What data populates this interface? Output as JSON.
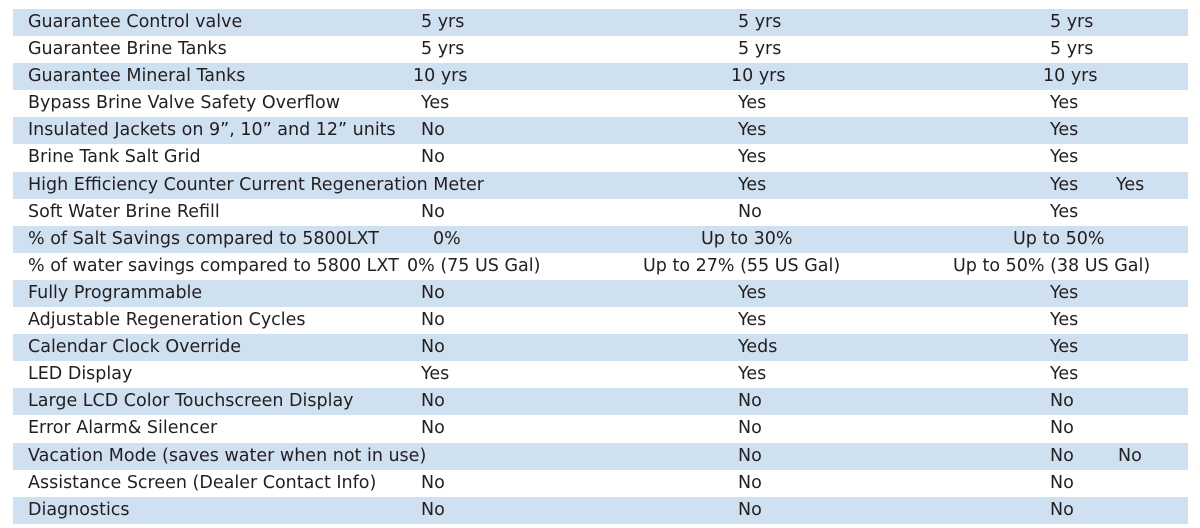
{
  "rows": [
    {
      "label": "Guarantee Control valve",
      "a": "5 yrs",
      "b": "5 yrs",
      "c": "5 yrs",
      "extra": ""
    },
    {
      "label": "Guarantee Brine Tanks",
      "a": "5 yrs",
      "b": "5 yrs",
      "c": "5 yrs",
      "extra": ""
    },
    {
      "label": "Guarantee Mineral Tanks",
      "a": "10 yrs",
      "b": "10 yrs",
      "c": "10 yrs",
      "extra": ""
    },
    {
      "label": "Bypass Brine Valve Safety Overflow",
      "a": "Yes",
      "b": "Yes",
      "c": "Yes",
      "extra": ""
    },
    {
      "label": "Insulated Jackets on 9”, 10” and 12” units",
      "a": "No",
      "b": "Yes",
      "c": "Yes",
      "extra": ""
    },
    {
      "label": "Brine Tank Salt Grid",
      "a": "No",
      "b": "Yes",
      "c": "Yes",
      "extra": ""
    },
    {
      "label": "High Efficiency Counter Current Regeneration Meter",
      "a": "",
      "b": "Yes",
      "c": "Yes",
      "extra": "Yes"
    },
    {
      "label": "Soft Water Brine Refill",
      "a": "No",
      "b": "No",
      "c": "Yes",
      "extra": ""
    },
    {
      "label": "% of Salt Savings compared to 5800LXT",
      "a": "0%",
      "b": "Up to 30%",
      "c": "Up to 50%",
      "extra": ""
    },
    {
      "label": "% of water savings compared to 5800 LXT",
      "a": "0%  (75 US Gal)",
      "b": "Up to 27% (55 US Gal)",
      "c": "Up to 50% (38 US Gal)",
      "extra": ""
    },
    {
      "label": "Fully Programmable",
      "a": "No",
      "b": "Yes",
      "c": "Yes",
      "extra": ""
    },
    {
      "label": "Adjustable Regeneration Cycles",
      "a": "No",
      "b": "Yes",
      "c": "Yes",
      "extra": ""
    },
    {
      "label": "Calendar Clock Override",
      "a": "No",
      "b": "Yeds",
      "c": "Yes",
      "extra": ""
    },
    {
      "label": "LED Display",
      "a": "Yes",
      "b": "Yes",
      "c": "Yes",
      "extra": ""
    },
    {
      "label": "Large LCD Color Touchscreen Display",
      "a": "No",
      "b": "No",
      "c": "No",
      "extra": ""
    },
    {
      "label": "Error Alarm& Silencer",
      "a": "No",
      "b": "No",
      "c": "No",
      "extra": ""
    },
    {
      "label": "Vacation Mode (saves water when not in use)",
      "a": "",
      "b": "No",
      "c": "No",
      "extra": "No"
    },
    {
      "label": "Assistance Screen (Dealer Contact Info)",
      "a": "No",
      "b": "No",
      "c": "No",
      "extra": ""
    },
    {
      "label": "Diagnostics",
      "a": "No",
      "b": "No",
      "c": "No",
      "extra": ""
    }
  ],
  "colors": {
    "shaded_row": "#cfe0f1",
    "plain_row": "#ffffff",
    "text": "#231f20"
  }
}
